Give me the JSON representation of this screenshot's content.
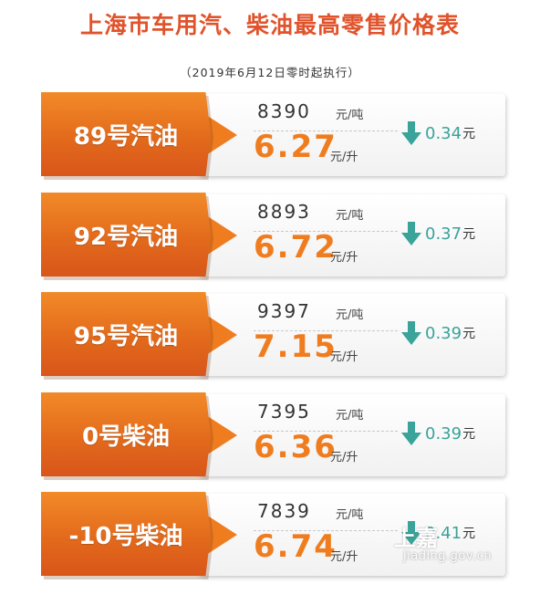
{
  "title": "上海市车用汽、柴油最高零售价格表",
  "subtitle": "（2019年6月12日零时起执行）",
  "units": {
    "per_ton": "元/吨",
    "per_litre": "元/升",
    "change": "元"
  },
  "icons": {
    "change_direction": "arrow-down-icon"
  },
  "colors": {
    "accent": "#ef7d1f",
    "decrease": "#3aa39a",
    "title": "#e0532b"
  },
  "rows": [
    {
      "fuel": "89号汽油",
      "price_ton": "8390",
      "price_litre": "6.27",
      "change": "0.34"
    },
    {
      "fuel": "92号汽油",
      "price_ton": "8893",
      "price_litre": "6.72",
      "change": "0.37"
    },
    {
      "fuel": "95号汽油",
      "price_ton": "9397",
      "price_litre": "7.15",
      "change": "0.39"
    },
    {
      "fuel": "0号柴油",
      "price_ton": "7395",
      "price_litre": "6.36",
      "change": "0.39"
    },
    {
      "fuel": "-10号柴油",
      "price_ton": "7839",
      "price_litre": "6.74",
      "change": "0.41"
    }
  ],
  "watermark": {
    "brand": "上嘉",
    "url": "jiading.gov.cn"
  }
}
